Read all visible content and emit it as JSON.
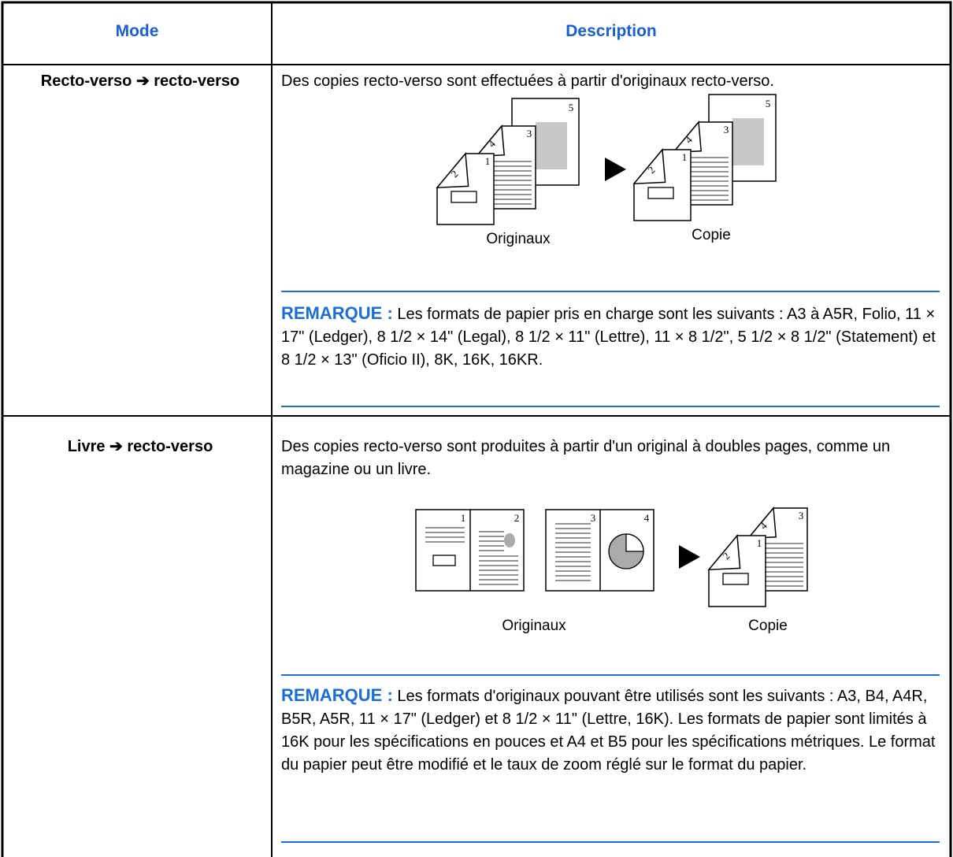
{
  "header": {
    "mode": "Mode",
    "description": "Description"
  },
  "rows": [
    {
      "mode": "Recto-verso ➔ recto-verso",
      "description": "Des copies recto-verso sont effectuées à partir d'originaux recto-verso.",
      "figure": {
        "original_label": "Originaux",
        "copy_label": "Copie",
        "original_pages": [
          "2",
          "1",
          "4",
          "3",
          "5"
        ],
        "copy_pages": [
          "2",
          "1",
          "4",
          "3",
          "5"
        ]
      },
      "note": {
        "label": "REMARQUE :",
        "text": "Les formats de papier pris en charge sont les suivants : A3 à A5R, Folio, 11 × 17\" (Ledger), 8 1/2 × 14\" (Legal), 8 1/2 × 11\" (Lettre), 11 × 8 1/2\", 5 1/2 × 8 1/2\" (Statement) et 8 1/2 × 13\" (Oficio II), 8K, 16K, 16KR."
      }
    },
    {
      "mode": "Livre ➔ recto-verso",
      "description": "Des copies recto-verso sont produites à partir d'un original à doubles pages, comme un magazine ou un livre.",
      "figure": {
        "original_label": "Originaux",
        "copy_label": "Copie",
        "original_pages": [
          "1",
          "2",
          "3",
          "4"
        ],
        "copy_pages": [
          "2",
          "1",
          "4",
          "3"
        ]
      },
      "note": {
        "label": "REMARQUE :",
        "text": "Les formats d'originaux pouvant être utilisés sont les suivants : A3, B4, A4R, B5R, A5R, 11 × 17\" (Ledger) et 8 1/2 × 11\" (Lettre, 16K). Les formats de papier sont limités à 16K pour les spécifications en pouces et A4 et B5 pour les spécifications métriques. Le format du papier peut être modifié et le taux de zoom réglé sur le format du papier."
      }
    }
  ]
}
